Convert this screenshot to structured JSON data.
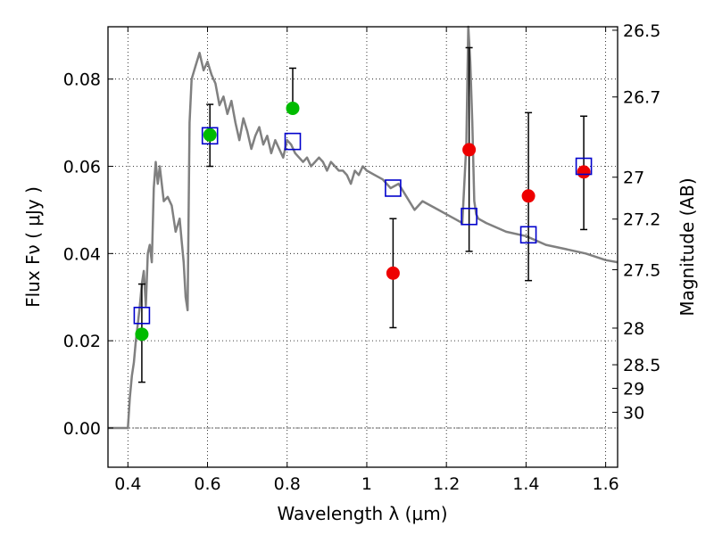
{
  "chart_data": {
    "type": "scatter",
    "xlabel": "Wavelength  λ (μm)",
    "ylabel": "Flux  Fν  ( μJy )",
    "y2label": "Magnitude (AB)",
    "xlim": [
      0.35,
      1.63
    ],
    "ylim": [
      -0.009,
      0.092
    ],
    "grid": true,
    "xticks": [
      0.4,
      0.6,
      0.8,
      1.0,
      1.2,
      1.4,
      1.6
    ],
    "xtick_labels": [
      "0.4",
      "0.6",
      "0.8",
      "1",
      "1.2",
      "1.4",
      "1.6"
    ],
    "yticks": [
      0.0,
      0.02,
      0.04,
      0.06,
      0.08
    ],
    "ytick_labels": [
      "0.00",
      "0.02",
      "0.04",
      "0.06",
      "0.08"
    ],
    "magnitude_ticks": [
      {
        "flux": 0.0912,
        "label": "26.5"
      },
      {
        "flux": 0.0759,
        "label": "26.7"
      },
      {
        "flux": 0.0575,
        "label": "27"
      },
      {
        "flux": 0.0479,
        "label": "27.2"
      },
      {
        "flux": 0.0363,
        "label": "27.5"
      },
      {
        "flux": 0.0229,
        "label": "28"
      },
      {
        "flux": 0.0145,
        "label": "28.5"
      },
      {
        "flux": 0.0091,
        "label": "29"
      },
      {
        "flux": 0.0036,
        "label": "30"
      }
    ],
    "series": [
      {
        "marker": "circle",
        "color": "#00bb00",
        "points": [
          {
            "x": 0.435,
            "y": 0.0215,
            "yerr_low": 0.0105,
            "yerr_high": 0.033
          },
          {
            "x": 0.606,
            "y": 0.0672,
            "yerr_low": 0.06,
            "yerr_high": 0.0742
          },
          {
            "x": 0.814,
            "y": 0.0733,
            "yerr_low": 0.0733,
            "yerr_high": 0.0825
          }
        ]
      },
      {
        "marker": "circle",
        "color": "#ee0000",
        "points": [
          {
            "x": 1.066,
            "y": 0.0355,
            "yerr_low": 0.023,
            "yerr_high": 0.048
          },
          {
            "x": 1.257,
            "y": 0.0638,
            "yerr_low": 0.0405,
            "yerr_high": 0.0872
          },
          {
            "x": 1.406,
            "y": 0.0532,
            "yerr_low": 0.0338,
            "yerr_high": 0.0723
          },
          {
            "x": 1.545,
            "y": 0.0587,
            "yerr_low": 0.0455,
            "yerr_high": 0.0715
          }
        ]
      },
      {
        "marker": "square-open",
        "color": "#0000cc",
        "points": [
          {
            "x": 0.435,
            "y": 0.0258
          },
          {
            "x": 0.606,
            "y": 0.067
          },
          {
            "x": 0.814,
            "y": 0.0657
          },
          {
            "x": 1.066,
            "y": 0.055
          },
          {
            "x": 1.257,
            "y": 0.0485
          },
          {
            "x": 1.406,
            "y": 0.0443
          },
          {
            "x": 1.545,
            "y": 0.06
          }
        ]
      },
      {
        "type": "line",
        "color": "#808080",
        "x": [
          0.35,
          0.4,
          0.405,
          0.41,
          0.415,
          0.42,
          0.425,
          0.43,
          0.435,
          0.44,
          0.445,
          0.45,
          0.455,
          0.46,
          0.465,
          0.47,
          0.475,
          0.48,
          0.49,
          0.5,
          0.51,
          0.52,
          0.53,
          0.535,
          0.54,
          0.545,
          0.55,
          0.555,
          0.56,
          0.57,
          0.58,
          0.59,
          0.6,
          0.61,
          0.62,
          0.63,
          0.64,
          0.65,
          0.66,
          0.67,
          0.68,
          0.69,
          0.7,
          0.71,
          0.72,
          0.73,
          0.74,
          0.75,
          0.76,
          0.77,
          0.78,
          0.79,
          0.8,
          0.81,
          0.82,
          0.83,
          0.84,
          0.85,
          0.86,
          0.87,
          0.88,
          0.89,
          0.9,
          0.91,
          0.92,
          0.93,
          0.94,
          0.95,
          0.96,
          0.97,
          0.98,
          0.99,
          1.0,
          1.02,
          1.04,
          1.06,
          1.08,
          1.1,
          1.12,
          1.14,
          1.16,
          1.18,
          1.2,
          1.22,
          1.24,
          1.25,
          1.255,
          1.26,
          1.265,
          1.27,
          1.275,
          1.28,
          1.3,
          1.35,
          1.4,
          1.45,
          1.5,
          1.55,
          1.6,
          1.63
        ],
        "y": [
          0.0,
          0.0,
          0.007,
          0.012,
          0.015,
          0.02,
          0.024,
          0.028,
          0.033,
          0.036,
          0.028,
          0.04,
          0.042,
          0.038,
          0.055,
          0.061,
          0.056,
          0.06,
          0.052,
          0.053,
          0.051,
          0.045,
          0.048,
          0.043,
          0.038,
          0.03,
          0.027,
          0.07,
          0.08,
          0.083,
          0.086,
          0.082,
          0.084,
          0.081,
          0.079,
          0.074,
          0.076,
          0.072,
          0.075,
          0.07,
          0.066,
          0.071,
          0.068,
          0.064,
          0.067,
          0.069,
          0.065,
          0.067,
          0.063,
          0.066,
          0.064,
          0.062,
          0.066,
          0.065,
          0.063,
          0.062,
          0.061,
          0.062,
          0.06,
          0.061,
          0.062,
          0.061,
          0.059,
          0.061,
          0.06,
          0.059,
          0.059,
          0.058,
          0.056,
          0.059,
          0.058,
          0.06,
          0.059,
          0.058,
          0.057,
          0.055,
          0.056,
          0.053,
          0.05,
          0.052,
          0.051,
          0.05,
          0.049,
          0.048,
          0.047,
          0.065,
          0.092,
          0.084,
          0.07,
          0.052,
          0.049,
          0.048,
          0.047,
          0.045,
          0.044,
          0.042,
          0.041,
          0.04,
          0.0385,
          0.038
        ]
      }
    ]
  }
}
